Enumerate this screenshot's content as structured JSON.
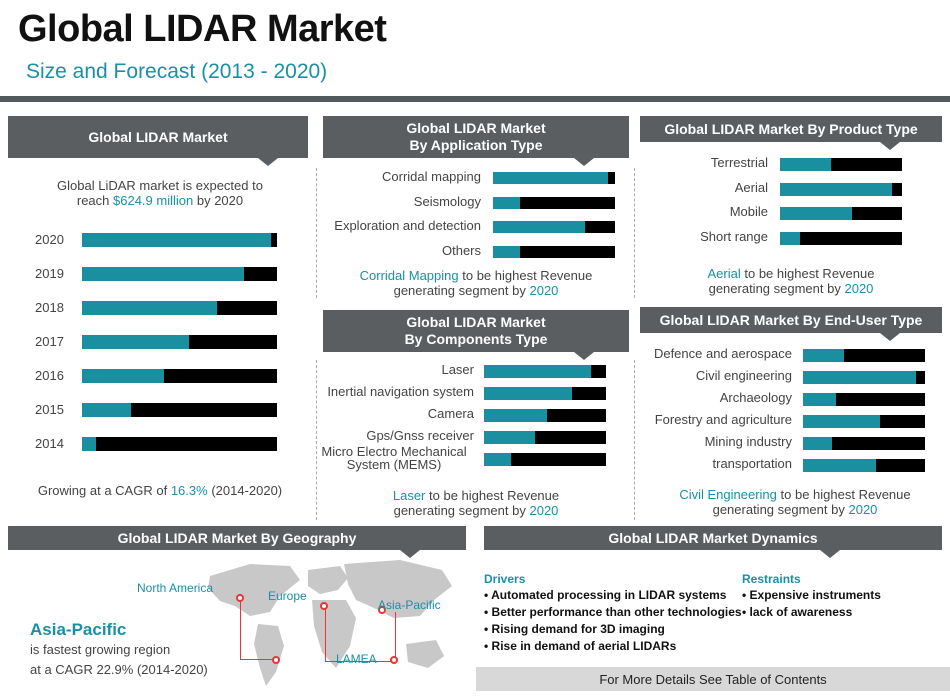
{
  "header": {
    "title": "Global LIDAR Market",
    "subtitle": "Size and Forecast (2013 - 2020)"
  },
  "market": {
    "heading": "Global LIDAR Market",
    "note_prefix": "Global LiDAR market is expected to",
    "note_reach": "reach",
    "note_value": "$624.9 million",
    "note_suffix": "by 2020",
    "cagr_prefix": "Growing at a CAGR of",
    "cagr_value": "16.3%",
    "cagr_suffix": "(2014-2020)"
  },
  "application": {
    "heading_line1": "Global LIDAR Market",
    "heading_line2": "By  Application Type",
    "note_highlight": "Corridal Mapping",
    "note_mid": "to be highest Revenue",
    "note_line2": "generating segment by",
    "note_year": "2020"
  },
  "product": {
    "heading": "Global LIDAR Market By  Product Type",
    "note_highlight": "Aerial",
    "note_mid": "to be highest Revenue",
    "note_line2": "generating segment by",
    "note_year": "2020"
  },
  "components": {
    "heading_line1": "Global LIDAR Market",
    "heading_line2": "By Components Type",
    "note_highlight": "Laser",
    "note_mid": "to be highest Revenue",
    "note_line2": "generating segment by",
    "note_year": "2020"
  },
  "enduser": {
    "heading": "Global LIDAR Market By  End-User Type",
    "note_highlight": "Civil Engineering",
    "note_mid": "to be highest Revenue",
    "note_line2": "generating segment by",
    "note_year": "2020"
  },
  "geography": {
    "heading": "Global LIDAR Market By Geography",
    "region_north_america": "North America",
    "region_europe": "Europe",
    "region_asia_pacific": "Asia-Pacific",
    "region_lamea": "LAMEA",
    "highlight": "Asia-Pacific",
    "line1": "is fastest growing region",
    "line2": "at a CAGR 22.9% (2014-2020)"
  },
  "dynamics": {
    "heading": "Global LIDAR Market Dynamics",
    "drivers_title": "Drivers",
    "drivers": [
      "• Automated processing in LIDAR  systems",
      "• Better performance than other technologies",
      "• Rising demand for 3D imaging",
      "• Rise in demand of aerial LIDARs"
    ],
    "restraints_title": "Restraints",
    "restraints": [
      "• Expensive instruments",
      "• lack of awareness"
    ]
  },
  "footer": {
    "text": "For More Details See Table of Contents"
  },
  "colors": {
    "accent": "#1a8fa0",
    "bar_bg": "#000000",
    "header_bg": "#5a5e61"
  },
  "chart_data": [
    {
      "type": "bar",
      "title": "Global LIDAR Market",
      "orientation": "horizontal",
      "categories": [
        "2020",
        "2019",
        "2018",
        "2017",
        "2016",
        "2015",
        "2014"
      ],
      "values": [
        0.97,
        0.83,
        0.69,
        0.55,
        0.42,
        0.25,
        0.07
      ],
      "value_unit": "share of bar (relative)"
    },
    {
      "type": "bar",
      "title": "Global LIDAR Market By Application Type",
      "orientation": "horizontal",
      "categories": [
        "Corridal mapping",
        "Seismology",
        "Exploration and detection",
        "Others"
      ],
      "values": [
        0.94,
        0.22,
        0.75,
        0.22
      ],
      "value_unit": "share of bar (relative)"
    },
    {
      "type": "bar",
      "title": "Global LIDAR Market By Product Type",
      "orientation": "horizontal",
      "categories": [
        "Terrestrial",
        "Aerial",
        "Mobile",
        "Short range"
      ],
      "values": [
        0.42,
        0.92,
        0.59,
        0.16
      ],
      "value_unit": "share of bar (relative)"
    },
    {
      "type": "bar",
      "title": "Global LIDAR Market By Components Type",
      "orientation": "horizontal",
      "categories": [
        "Laser",
        "Inertial navigation system",
        "Camera",
        "Gps/Gnss receiver",
        "Micro Electro Mechanical System (MEMS)"
      ],
      "values": [
        0.88,
        0.72,
        0.52,
        0.42,
        0.22
      ],
      "value_unit": "share of bar (relative)"
    },
    {
      "type": "bar",
      "title": "Global LIDAR Market By End-User Type",
      "orientation": "horizontal",
      "categories": [
        "Defence and aerospace",
        "Civil engineering",
        "Archaeology",
        "Forestry and agriculture",
        "Mining industry",
        "transportation"
      ],
      "values": [
        0.34,
        0.93,
        0.27,
        0.63,
        0.24,
        0.6
      ],
      "value_unit": "share of bar (relative)"
    }
  ]
}
